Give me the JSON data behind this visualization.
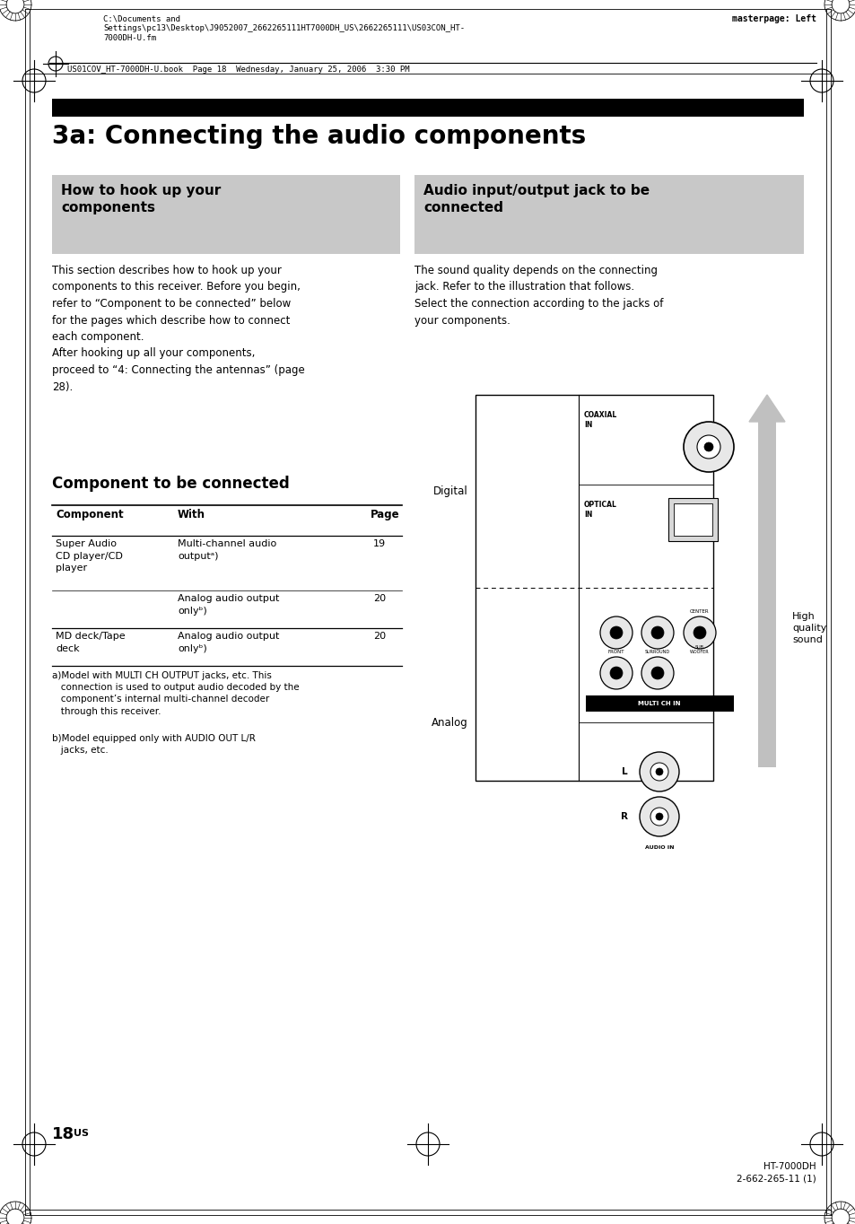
{
  "page_bg": "#ffffff",
  "page_width": 9.54,
  "page_height": 13.64,
  "top_filepath": "C:\\Documents and\nSettings\\pc13\\Desktop\\J9052007_2662265111HT7000DH_US\\2662265111\\US03CON_HT-\n7000DH-U.fm",
  "top_right": "masterpage: Left",
  "top_book": "US01COV_HT-7000DH-U.book  Page 18  Wednesday, January 25, 2006  3:30 PM",
  "main_title": "3a: Connecting the audio components",
  "left_box_title": "How to hook up your\ncomponents",
  "right_box_title": "Audio input/output jack to be\nconnected",
  "left_body": "This section describes how to hook up your\ncomponents to this receiver. Before you begin,\nrefer to “Component to be connected” below\nfor the pages which describe how to connect\neach component.\nAfter hooking up all your components,\nproceed to “4: Connecting the antennas” (page\n28).",
  "right_body": "The sound quality depends on the connecting\njack. Refer to the illustration that follows.\nSelect the connection according to the jacks of\nyour components.",
  "section_title": "Component to be connected",
  "footnote_a": "a)Model with MULTI CH OUTPUT jacks, etc. This\n   connection is used to output audio decoded by the\n   component’s internal multi-channel decoder\n   through this receiver.",
  "footnote_b": "b)Model equipped only with AUDIO OUT L/R\n   jacks, etc.",
  "page_number": "18",
  "bottom_right": "HT-7000DH\n2-662-265-11 (1)",
  "high_quality_label": "High\nquality\nsound",
  "digital_label": "Digital",
  "analog_label": "Analog"
}
